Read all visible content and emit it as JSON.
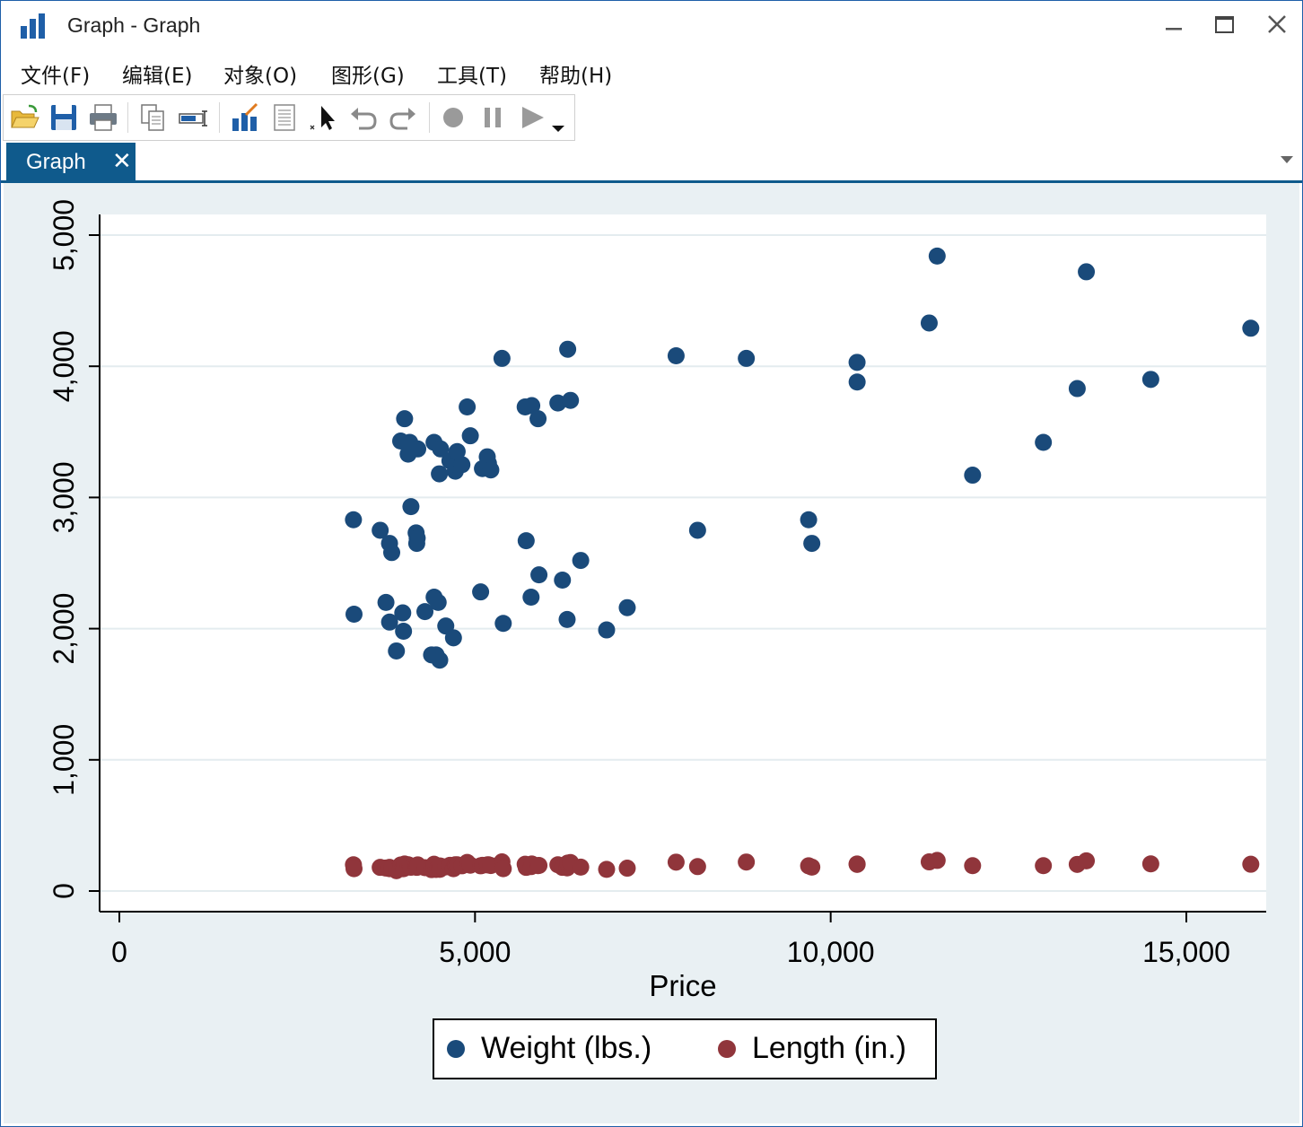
{
  "window": {
    "title": "Graph - Graph",
    "controls": {
      "minimize": "minimize",
      "maximize": "maximize",
      "close": "close"
    }
  },
  "menubar": {
    "items": [
      {
        "label": "文件(F)"
      },
      {
        "label": "编辑(E)"
      },
      {
        "label": "对象(O)"
      },
      {
        "label": "图形(G)"
      },
      {
        "label": "工具(T)"
      },
      {
        "label": "帮助(H)"
      }
    ]
  },
  "toolbar": {
    "buttons": [
      "open-icon",
      "save-icon",
      "print-icon",
      "copy-icon",
      "rename-icon",
      "graph-editor-icon",
      "data-editor-icon",
      "pointer-icon",
      "undo-icon",
      "redo-icon",
      "record-icon",
      "pause-icon",
      "play-icon",
      "dropdown-icon"
    ]
  },
  "tabs": [
    {
      "label": "Graph",
      "close": "✕"
    }
  ],
  "colors": {
    "weight": "#1a4a7a",
    "length": "#90353b",
    "plot_bg": "#ffffff",
    "outer_bg": "#e9f0f3",
    "tab": "#0f5a8c"
  },
  "chart_data": {
    "type": "scatter",
    "xlabel": "Price",
    "ylabel": "",
    "xlim": [
      0,
      16000
    ],
    "ylim": [
      0,
      5000
    ],
    "xticks": [
      0,
      5000,
      10000,
      15000
    ],
    "xtick_labels": [
      "0",
      "5,000",
      "10,000",
      "15,000"
    ],
    "yticks": [
      0,
      1000,
      2000,
      3000,
      4000,
      5000
    ],
    "ytick_labels": [
      "0",
      "1,000",
      "2,000",
      "3,000",
      "4,000",
      "5,000"
    ],
    "grid": "horizontal",
    "legend_position": "bottom",
    "series": [
      {
        "name": "Weight (lbs.)",
        "points": [
          [
            3291,
            2830
          ],
          [
            3299,
            2110
          ],
          [
            3667,
            2750
          ],
          [
            3748,
            2200
          ],
          [
            3798,
            2650
          ],
          [
            3799,
            2050
          ],
          [
            3829,
            2580
          ],
          [
            3895,
            1830
          ],
          [
            3955,
            3430
          ],
          [
            3984,
            2120
          ],
          [
            3995,
            1980
          ],
          [
            4010,
            3600
          ],
          [
            4060,
            3330
          ],
          [
            4082,
            3420
          ],
          [
            4099,
            2930
          ],
          [
            4172,
            2730
          ],
          [
            4181,
            2650
          ],
          [
            4187,
            2690
          ],
          [
            4195,
            3370
          ],
          [
            4296,
            2130
          ],
          [
            4389,
            1800
          ],
          [
            4424,
            3420
          ],
          [
            4425,
            2240
          ],
          [
            4453,
            1800
          ],
          [
            4482,
            2200
          ],
          [
            4499,
            3180
          ],
          [
            4504,
            1760
          ],
          [
            4516,
            3370
          ],
          [
            4589,
            2020
          ],
          [
            4647,
            3280
          ],
          [
            4697,
            1930
          ],
          [
            4723,
            3200
          ],
          [
            4733,
            3250
          ],
          [
            4749,
            3350
          ],
          [
            4816,
            3250
          ],
          [
            4890,
            3690
          ],
          [
            4934,
            3470
          ],
          [
            5079,
            2280
          ],
          [
            5104,
            3220
          ],
          [
            5172,
            3310
          ],
          [
            5189,
            3260
          ],
          [
            5222,
            3210
          ],
          [
            5379,
            4060
          ],
          [
            5397,
            2040
          ],
          [
            5705,
            3690
          ],
          [
            5719,
            2670
          ],
          [
            5788,
            2240
          ],
          [
            5798,
            3700
          ],
          [
            5886,
            3600
          ],
          [
            5899,
            2410
          ],
          [
            6165,
            3720
          ],
          [
            6229,
            2370
          ],
          [
            6295,
            2070
          ],
          [
            6303,
            4130
          ],
          [
            6342,
            3740
          ],
          [
            6486,
            2520
          ],
          [
            6850,
            1990
          ],
          [
            7140,
            2160
          ],
          [
            7827,
            4080
          ],
          [
            8129,
            2750
          ],
          [
            8814,
            4060
          ],
          [
            9690,
            2830
          ],
          [
            9735,
            2650
          ],
          [
            10371,
            4030
          ],
          [
            10372,
            3880
          ],
          [
            11385,
            4330
          ],
          [
            11497,
            4840
          ],
          [
            11995,
            3170
          ],
          [
            12990,
            3420
          ],
          [
            13466,
            3830
          ],
          [
            13594,
            4720
          ],
          [
            14500,
            3900
          ],
          [
            15906,
            4290
          ]
        ]
      },
      {
        "name": "Length (in.)",
        "points": [
          [
            3291,
            200
          ],
          [
            3299,
            170
          ],
          [
            3667,
            180
          ],
          [
            3748,
            175
          ],
          [
            3798,
            170
          ],
          [
            3799,
            180
          ],
          [
            3829,
            172
          ],
          [
            3895,
            155
          ],
          [
            3955,
            198
          ],
          [
            3984,
            170
          ],
          [
            3995,
            170
          ],
          [
            4010,
            206
          ],
          [
            4060,
            200
          ],
          [
            4082,
            195
          ],
          [
            4099,
            181
          ],
          [
            4172,
            190
          ],
          [
            4181,
            180
          ],
          [
            4187,
            185
          ],
          [
            4195,
            199
          ],
          [
            4296,
            178
          ],
          [
            4389,
            163
          ],
          [
            4424,
            204
          ],
          [
            4425,
            179
          ],
          [
            4453,
            164
          ],
          [
            4482,
            175
          ],
          [
            4499,
            191
          ],
          [
            4504,
            165
          ],
          [
            4516,
            190
          ],
          [
            4589,
            184
          ],
          [
            4647,
            196
          ],
          [
            4697,
            170
          ],
          [
            4723,
            200
          ],
          [
            4733,
            193
          ],
          [
            4749,
            200
          ],
          [
            4816,
            192
          ],
          [
            4890,
            218
          ],
          [
            4934,
            197
          ],
          [
            5079,
            192
          ],
          [
            5104,
            196
          ],
          [
            5172,
            199
          ],
          [
            5189,
            200
          ],
          [
            5222,
            194
          ],
          [
            5379,
            222
          ],
          [
            5397,
            170
          ],
          [
            5705,
            204
          ],
          [
            5719,
            180
          ],
          [
            5788,
            186
          ],
          [
            5798,
            206
          ],
          [
            5886,
            193
          ],
          [
            5899,
            195
          ],
          [
            6165,
            200
          ],
          [
            6229,
            180
          ],
          [
            6295,
            176
          ],
          [
            6303,
            213
          ],
          [
            6342,
            217
          ],
          [
            6486,
            182
          ],
          [
            6850,
            165
          ],
          [
            7140,
            174
          ],
          [
            7827,
            220
          ],
          [
            8129,
            186
          ],
          [
            8814,
            221
          ],
          [
            9690,
            192
          ],
          [
            9735,
            182
          ],
          [
            10371,
            206
          ],
          [
            10372,
            203
          ],
          [
            11385,
            222
          ],
          [
            11497,
            233
          ],
          [
            11995,
            193
          ],
          [
            12990,
            193
          ],
          [
            13466,
            203
          ],
          [
            13594,
            230
          ],
          [
            14500,
            207
          ],
          [
            15906,
            204
          ]
        ]
      }
    ]
  }
}
